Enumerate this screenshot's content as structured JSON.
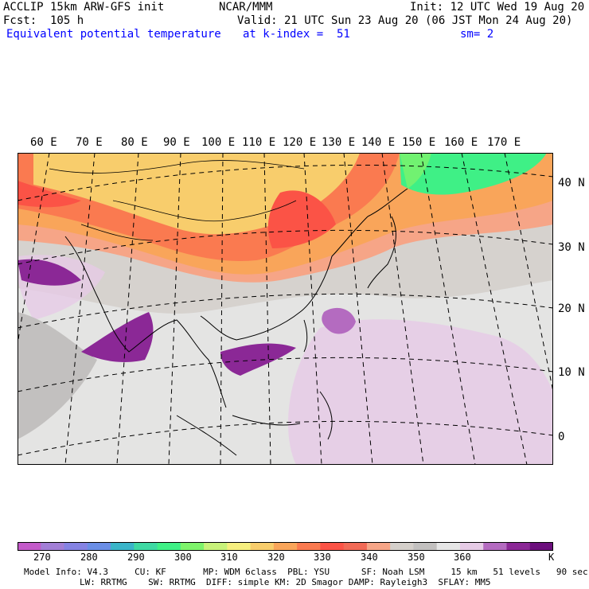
{
  "header": {
    "model": "ACCLIP 15km ARW-GFS init",
    "org": "NCAR/MMM",
    "init": "Init: 12 UTC Wed 19 Aug 20",
    "fcst": "Fcst:  105 h",
    "valid": "Valid: 21 UTC Sun 23 Aug 20 (06 JST Mon 24 Aug 20)",
    "field": "Equivalent potential temperature",
    "level": "at k-index =  51",
    "smooth": "sm= 2"
  },
  "map": {
    "lon_labels": [
      "60 E",
      "70 E",
      "80 E",
      "90 E",
      "100 E",
      "110 E",
      "120 E",
      "130 E",
      "140 E",
      "150 E",
      "160 E",
      "170 E"
    ],
    "lat_labels": [
      "40 N",
      "30 N",
      "20 N",
      "10 N",
      "0"
    ]
  },
  "colorbar": {
    "colors": [
      "#c35ac9",
      "#a27fd6",
      "#8583e3",
      "#6a8ee6",
      "#3ab5c9",
      "#3ed9a3",
      "#3ff086",
      "#7ef36b",
      "#c8f27a",
      "#f6ef7f",
      "#f8cd6c",
      "#f9a55a",
      "#fa7a50",
      "#fb5346",
      "#f16a56",
      "#f6a587",
      "#d4cfca",
      "#c2c0bf",
      "#e6e6e6",
      "#e6cbe6",
      "#b46bc0",
      "#8b2896",
      "#6c0f7d"
    ],
    "labels": [
      "270",
      "280",
      "290",
      "300",
      "310",
      "320",
      "330",
      "340",
      "350",
      "360",
      "K"
    ],
    "unit": "K"
  },
  "footer": {
    "line1": "Model Info: V4.3     CU: KF       MP: WDM 6class  PBL: YSU      SF: Noah LSM     15 km   51 levels   90 sec",
    "line2": "LW: RRTMG    SW: RRTMG  DIFF: simple KM: 2D Smagor DAMP: Rayleigh3  SFLAY: MM5"
  }
}
